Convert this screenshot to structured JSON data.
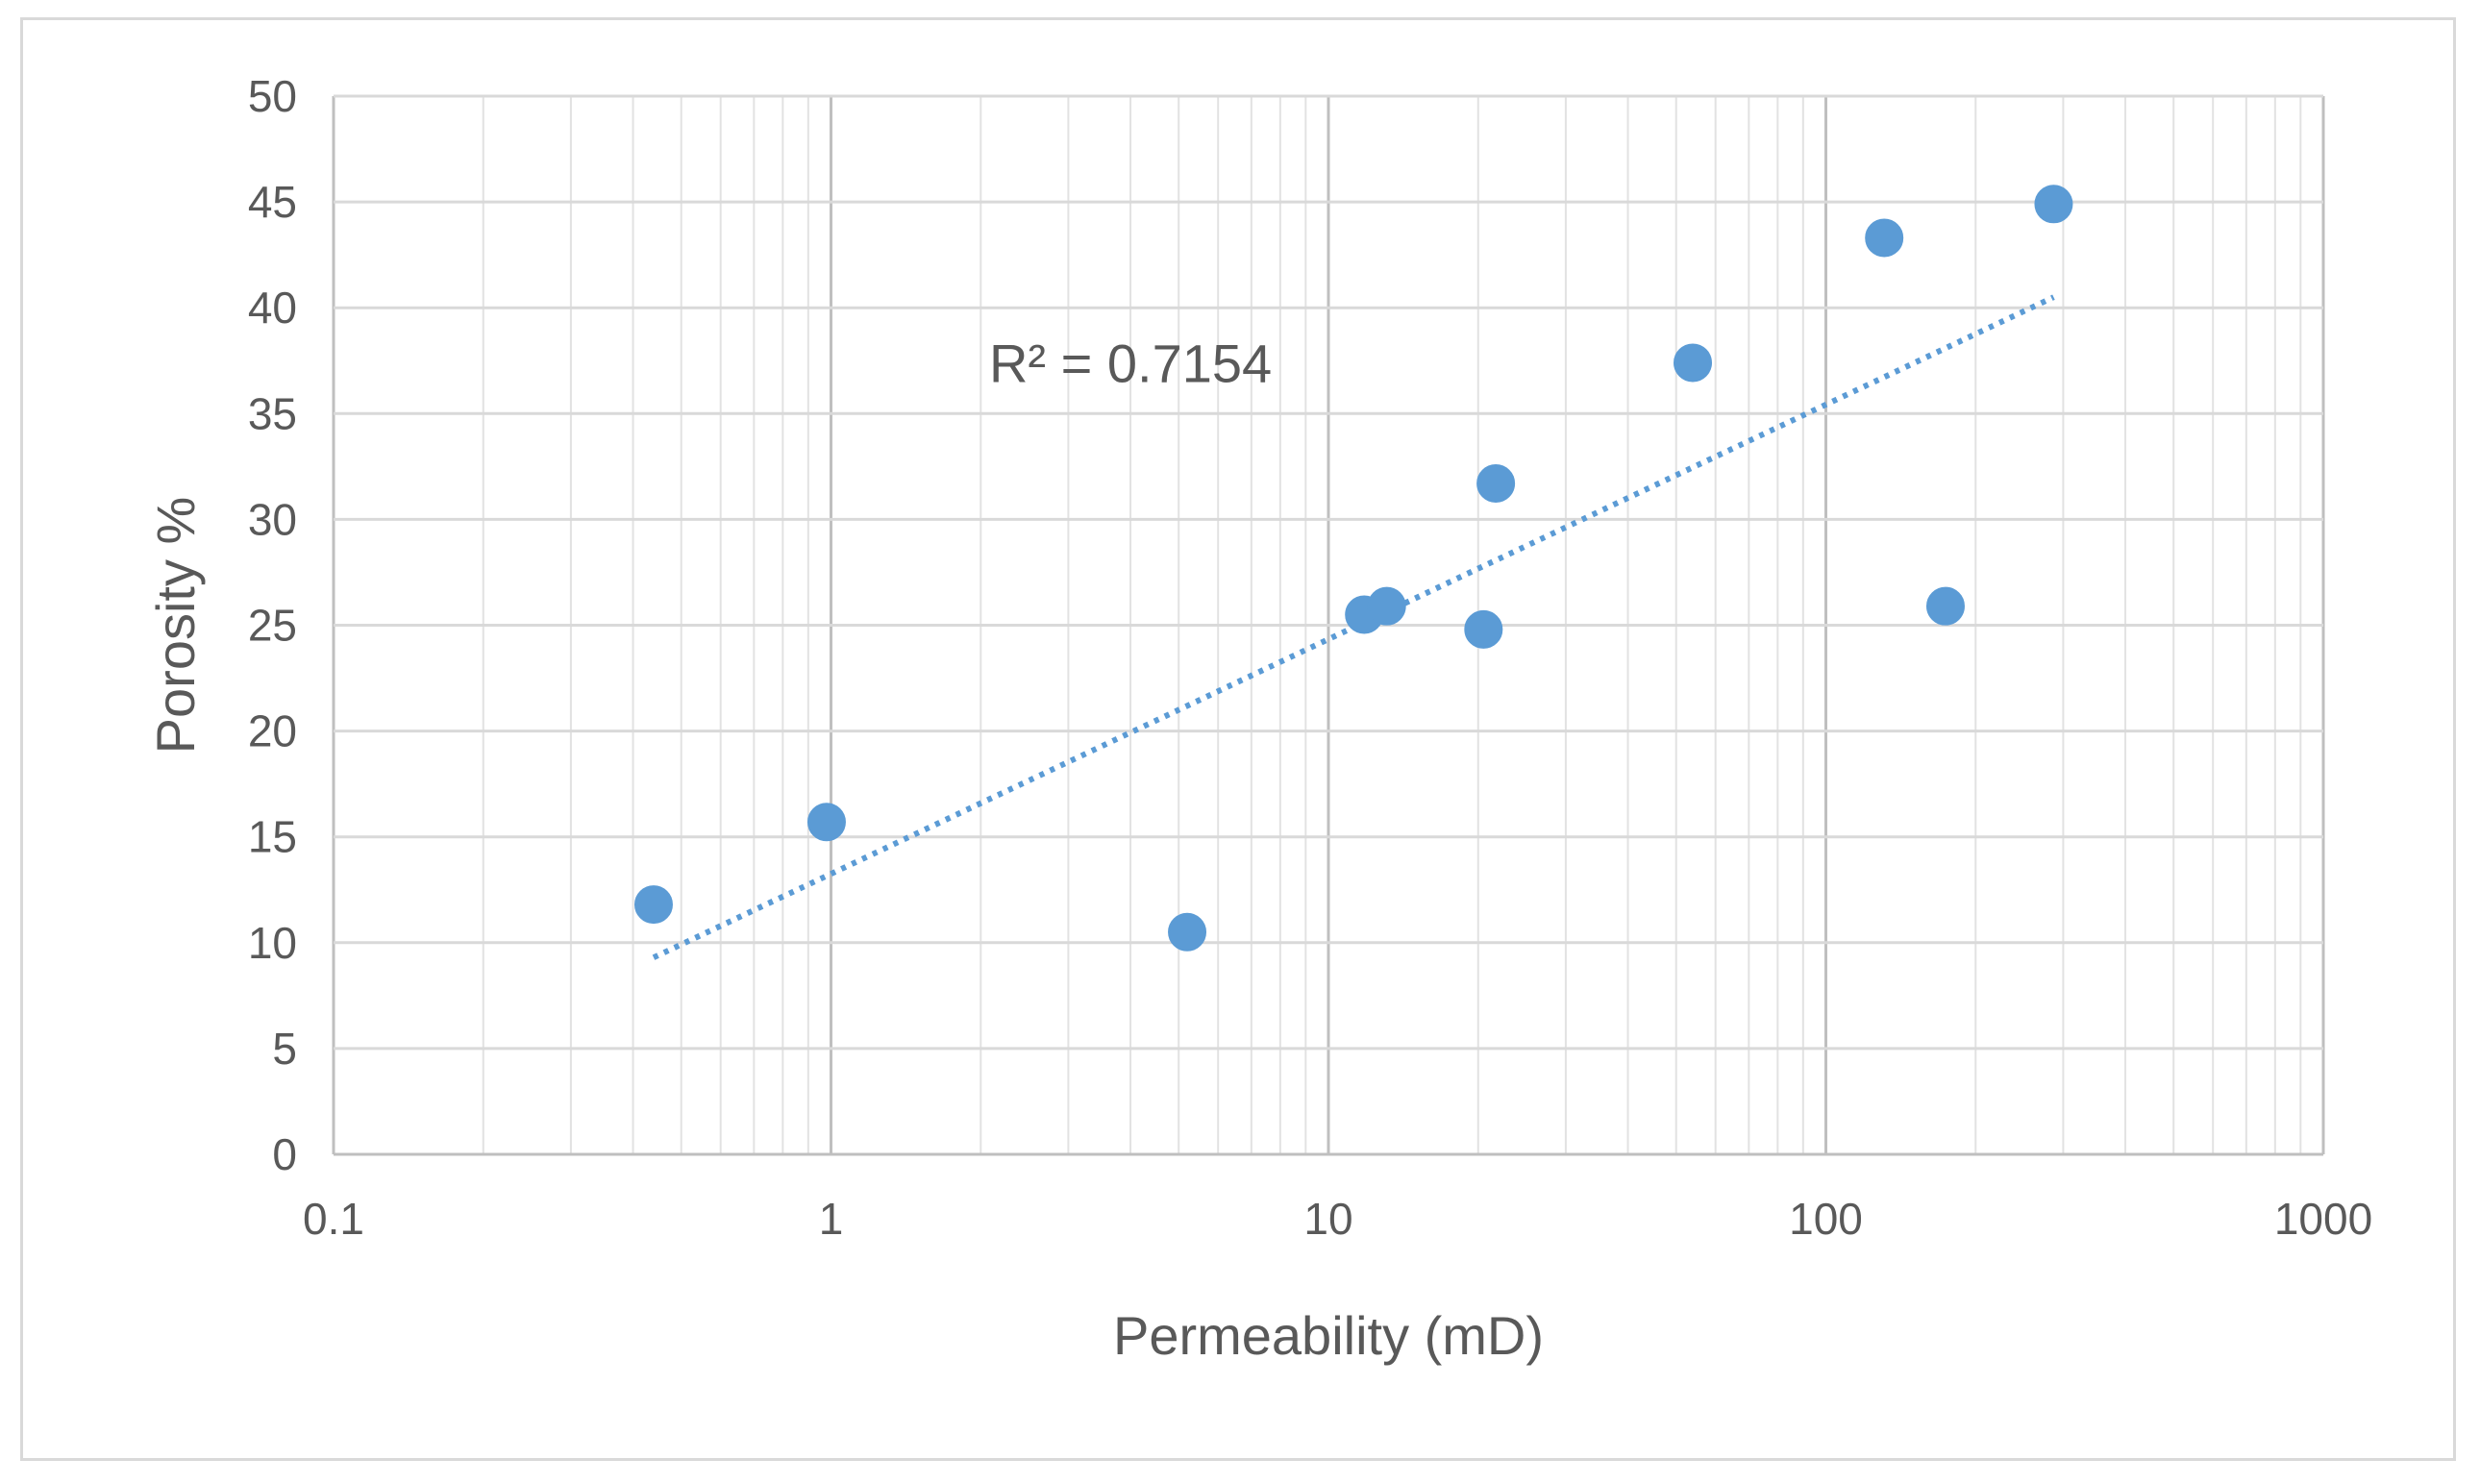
{
  "chart_data": {
    "type": "scatter",
    "title": "",
    "xlabel": "Permeability (mD)",
    "ylabel": "Porosity %",
    "x_scale": "log",
    "xlim": [
      0.1,
      1000
    ],
    "ylim": [
      0,
      50
    ],
    "x_ticks": [
      0.1,
      1,
      10,
      100,
      1000
    ],
    "x_tick_labels": [
      "0.1",
      "1",
      "10",
      "100",
      "1000"
    ],
    "y_ticks": [
      0,
      5,
      10,
      15,
      20,
      25,
      30,
      35,
      40,
      45,
      50
    ],
    "y_tick_labels": [
      "0",
      "5",
      "10",
      "15",
      "20",
      "25",
      "30",
      "35",
      "40",
      "45",
      "50"
    ],
    "grid": true,
    "legend": "none",
    "series": [
      {
        "color": "#5b9bd5",
        "points": [
          {
            "x": 0.44,
            "y": 11.8
          },
          {
            "x": 0.98,
            "y": 15.7
          },
          {
            "x": 5.2,
            "y": 10.5
          },
          {
            "x": 11.8,
            "y": 25.5
          },
          {
            "x": 13.1,
            "y": 25.9
          },
          {
            "x": 20.5,
            "y": 24.8
          },
          {
            "x": 21.7,
            "y": 31.7
          },
          {
            "x": 54.0,
            "y": 37.4
          },
          {
            "x": 131.0,
            "y": 43.3
          },
          {
            "x": 174.0,
            "y": 25.9
          },
          {
            "x": 287.0,
            "y": 44.9
          }
        ]
      }
    ],
    "trendline": {
      "type": "logarithmic",
      "style": "dotted",
      "color": "#5b9bd5",
      "x_range": [
        0.44,
        287.0
      ],
      "y_start": 9.3,
      "y_end": 40.5
    },
    "annotations": [
      {
        "text": "R² = 0.7154",
        "x": 4.0,
        "y": 37.4
      }
    ]
  }
}
